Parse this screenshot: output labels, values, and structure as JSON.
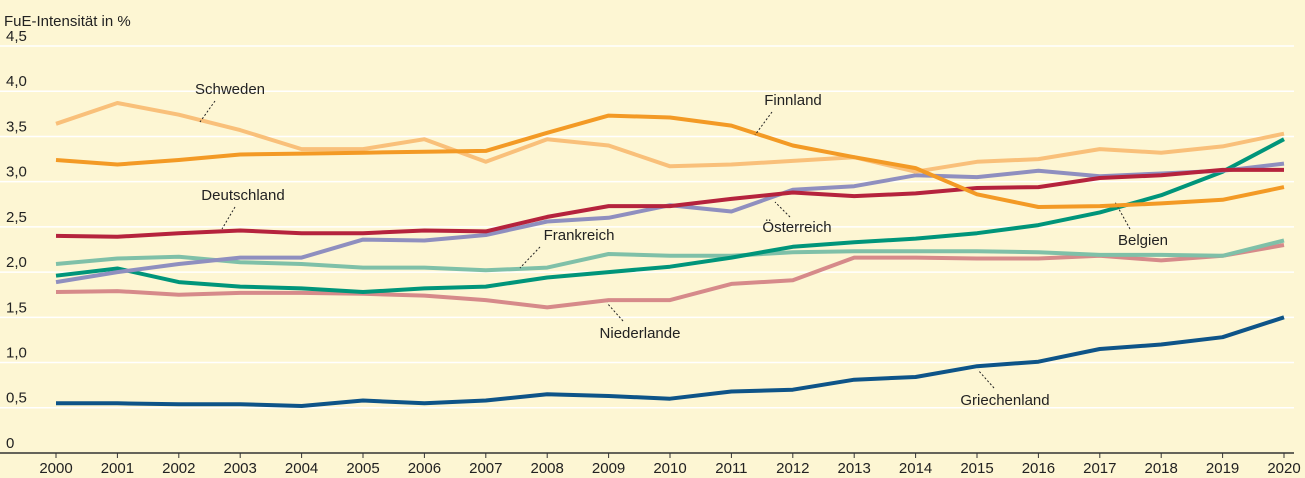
{
  "chart_data": {
    "type": "line",
    "y_axis_label": "FuE-Intensität in %",
    "x": [
      2000,
      2001,
      2002,
      2003,
      2004,
      2005,
      2006,
      2007,
      2008,
      2009,
      2010,
      2011,
      2012,
      2013,
      2014,
      2015,
      2016,
      2017,
      2018,
      2019,
      2020
    ],
    "xlim": [
      2000,
      2020
    ],
    "xticks": [
      2000,
      2001,
      2002,
      2003,
      2004,
      2005,
      2006,
      2007,
      2008,
      2009,
      2010,
      2011,
      2012,
      2013,
      2014,
      2015,
      2016,
      2017,
      2018,
      2019,
      2020
    ],
    "ylim": [
      0,
      4.5
    ],
    "yticks": [
      0,
      {
        "value": 0.5,
        "label": "0,5"
      },
      {
        "value": 1,
        "label": "1,0"
      },
      {
        "value": 1.5,
        "label": "1,5"
      },
      {
        "value": 2,
        "label": "2,0"
      },
      {
        "value": 2.5,
        "label": "2,5"
      },
      {
        "value": 3,
        "label": "3,0"
      },
      {
        "value": 3.5,
        "label": "3,5"
      },
      {
        "value": 4,
        "label": "4,0"
      },
      {
        "value": 4.5,
        "label": "4,5"
      }
    ],
    "grid": true,
    "series": [
      {
        "name": "Griechenland",
        "color": "#0e5488",
        "values": [
          0.55,
          0.55,
          0.54,
          0.54,
          0.52,
          0.58,
          0.55,
          0.58,
          0.65,
          0.63,
          0.6,
          0.68,
          0.7,
          0.81,
          0.84,
          0.96,
          1.01,
          1.15,
          1.2,
          1.28,
          1.5
        ]
      },
      {
        "name": "Niederlande",
        "color": "#d68a8a",
        "values": [
          1.78,
          1.79,
          1.75,
          1.77,
          1.77,
          1.76,
          1.74,
          1.69,
          1.61,
          1.69,
          1.69,
          1.87,
          1.91,
          2.16,
          2.16,
          2.15,
          2.15,
          2.18,
          2.13,
          2.18,
          2.3
        ]
      },
      {
        "name": "Frankreich",
        "color": "#7fc0a8",
        "values": [
          2.09,
          2.15,
          2.17,
          2.11,
          2.09,
          2.05,
          2.05,
          2.02,
          2.05,
          2.2,
          2.18,
          2.18,
          2.22,
          2.23,
          2.23,
          2.23,
          2.22,
          2.19,
          2.19,
          2.18,
          2.35
        ]
      },
      {
        "name": "Belgien",
        "color": "#00957a",
        "values": [
          1.96,
          2.04,
          1.89,
          1.84,
          1.82,
          1.78,
          1.82,
          1.84,
          1.94,
          2.0,
          2.06,
          2.16,
          2.28,
          2.33,
          2.37,
          2.43,
          2.52,
          2.66,
          2.85,
          3.11,
          3.47
        ]
      },
      {
        "name": "Österreich",
        "color": "#8f8fbf",
        "values": [
          1.89,
          2.0,
          2.09,
          2.16,
          2.16,
          2.36,
          2.35,
          2.41,
          2.56,
          2.6,
          2.74,
          2.67,
          2.91,
          2.95,
          3.07,
          3.05,
          3.12,
          3.06,
          3.09,
          3.12,
          3.2
        ]
      },
      {
        "name": "Deutschland",
        "color": "#b5233d",
        "values": [
          2.4,
          2.39,
          2.43,
          2.46,
          2.43,
          2.43,
          2.46,
          2.45,
          2.61,
          2.73,
          2.73,
          2.81,
          2.88,
          2.84,
          2.87,
          2.93,
          2.94,
          3.04,
          3.07,
          3.13,
          3.13
        ]
      },
      {
        "name": "Schweden",
        "color": "#f9c07a",
        "values": [
          3.64,
          3.87,
          3.74,
          3.57,
          3.36,
          3.36,
          3.47,
          3.22,
          3.47,
          3.4,
          3.17,
          3.19,
          3.23,
          3.27,
          3.11,
          3.22,
          3.25,
          3.36,
          3.32,
          3.39,
          3.53
        ]
      },
      {
        "name": "Finnland",
        "color": "#f39a25",
        "values": [
          3.24,
          3.19,
          3.24,
          3.3,
          3.31,
          3.32,
          3.33,
          3.34,
          3.54,
          3.73,
          3.71,
          3.62,
          3.4,
          3.27,
          3.15,
          2.86,
          2.72,
          2.73,
          2.76,
          2.8,
          2.94
        ]
      }
    ]
  }
}
